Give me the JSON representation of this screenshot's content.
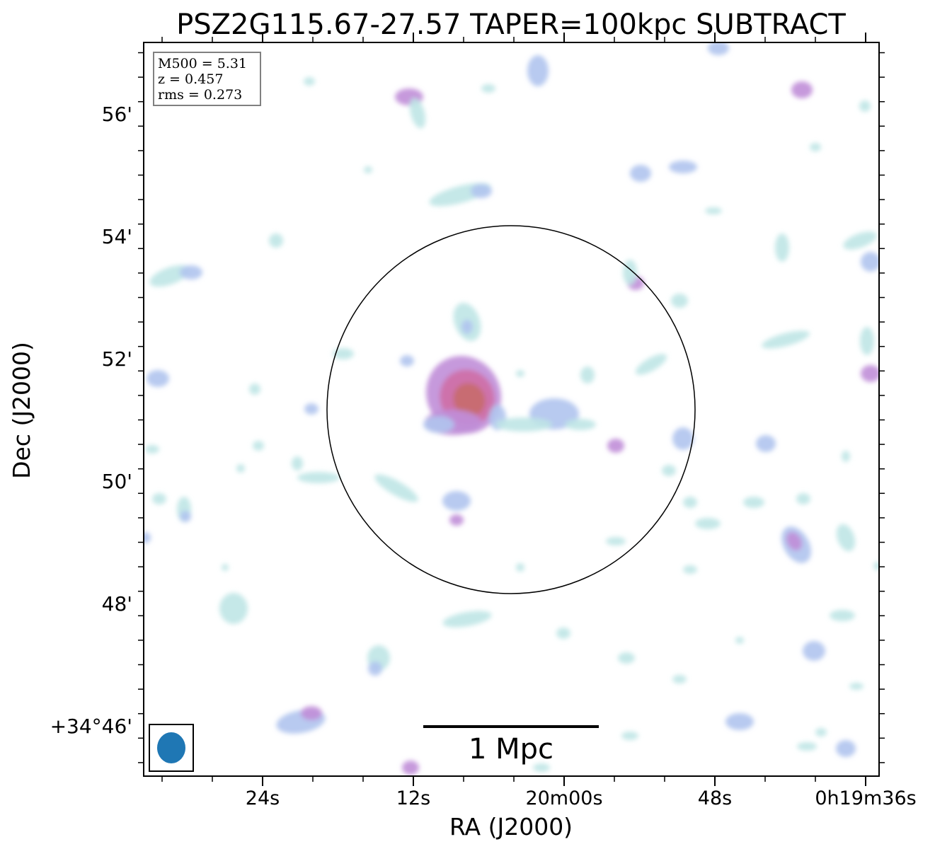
{
  "chart_data": {
    "type": "heatmap",
    "title": "PSZ2G115.67-27.57 TAPER=100kpc SUBTRACT",
    "xlabel": "RA (J2000)",
    "ylabel": "Dec (J2000)",
    "x_ticks": [
      {
        "label": "24s",
        "ra_sec": 84
      },
      {
        "label": "12s",
        "ra_sec": 72
      },
      {
        "label": "20m00s",
        "ra_sec": 60
      },
      {
        "label": "48s",
        "ra_sec": 48
      },
      {
        "label": "0h19m36s",
        "ra_sec": 36
      }
    ],
    "y_ticks": [
      {
        "label": "56'",
        "dec_arcmin": 56
      },
      {
        "label": "54'",
        "dec_arcmin": 54
      },
      {
        "label": "52'",
        "dec_arcmin": 52
      },
      {
        "label": "50'",
        "dec_arcmin": 50
      },
      {
        "label": "48'",
        "dec_arcmin": 48
      },
      {
        "label": "+34°46'",
        "dec_arcmin": 46
      }
    ],
    "info_box": {
      "lines": [
        "M500 = 5.31",
        "z = 0.457",
        "rms = 0.273"
      ]
    },
    "scalebar_label": "1 Mpc",
    "colormap": [
      "#bfe6e6",
      "#b0c4ee",
      "#c08ed8",
      "#cf6fa6",
      "#c86b6b"
    ]
  }
}
